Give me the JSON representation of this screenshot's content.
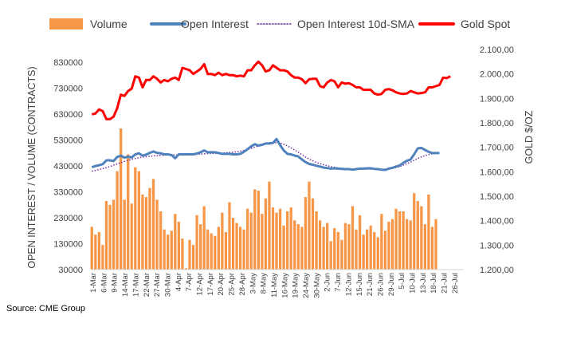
{
  "chart_data": {
    "type": "bar+line",
    "title": "",
    "legend": [
      {
        "name": "Volume",
        "color": "#F79646",
        "style": "bar"
      },
      {
        "name": "Open Interest",
        "color": "#4F81BD",
        "style": "line"
      },
      {
        "name": "Open Interest 10d-SMA",
        "color": "#7030A0",
        "style": "dotted"
      },
      {
        "name": "Gold Spot",
        "color": "#FF0000",
        "style": "line"
      }
    ],
    "legend_position": "top",
    "ylabel_left": "OPEN INTEREST / VOLUME (CONTRACTS)",
    "ylabel_right": "GOLD $/OZ",
    "ylim_left": [
      30000,
      880000
    ],
    "ylim_right": [
      1200,
      2100
    ],
    "yticks_left": [
      "30000",
      "130000",
      "230000",
      "330000",
      "430000",
      "530000",
      "630000",
      "730000",
      "830000"
    ],
    "yticks_right": [
      "1.200,00",
      "1.300,00",
      "1.400,00",
      "1.500,00",
      "1.600,00",
      "1.700,00",
      "1.800,00",
      "1.900,00",
      "2.000,00",
      "2.100,00"
    ],
    "xticks": [
      "1-Mar",
      "6-Mar",
      "9-Mar",
      "14-Mar",
      "17-Mar",
      "22-Mar",
      "27-Mar",
      "30-Mar",
      "4-Apr",
      "7-Apr",
      "12-Apr",
      "17-Apr",
      "20-Apr",
      "25-Apr",
      "28-Apr",
      "3-May",
      "8-May",
      "11-May",
      "16-May",
      "19-May",
      "24-May",
      "30-May",
      "2-Jun",
      "7-Jun",
      "12-Jun",
      "15-Jun",
      "21-Jun",
      "26-Jun",
      "29-Jun",
      "5-Jul",
      "10-Jul",
      "13-Jul",
      "18-Jul",
      "21-Jul",
      "26-Jul"
    ],
    "grid": false,
    "n_points": 101,
    "volume": [
      195000,
      165000,
      175000,
      125000,
      295000,
      280000,
      300000,
      410000,
      575000,
      300000,
      475000,
      285000,
      425000,
      410000,
      320000,
      310000,
      345000,
      380000,
      300000,
      255000,
      185000,
      165000,
      180000,
      245000,
      215000,
      150000,
      35000,
      145000,
      125000,
      240000,
      205000,
      275000,
      185000,
      170000,
      160000,
      195000,
      250000,
      175000,
      290000,
      230000,
      210000,
      195000,
      185000,
      265000,
      250000,
      340000,
      335000,
      245000,
      305000,
      370000,
      270000,
      250000,
      265000,
      200000,
      255000,
      270000,
      220000,
      205000,
      195000,
      310000,
      370000,
      305000,
      255000,
      220000,
      195000,
      210000,
      140000,
      190000,
      175000,
      145000,
      210000,
      205000,
      275000,
      185000,
      240000,
      165000,
      185000,
      200000,
      175000,
      155000,
      245000,
      180000,
      215000,
      225000,
      265000,
      255000,
      255000,
      225000,
      220000,
      325000,
      295000,
      275000,
      205000,
      320000,
      195000,
      225000,
      null,
      null,
      null,
      null,
      null
    ],
    "open_interest": [
      425000,
      430000,
      433000,
      437000,
      452000,
      452000,
      449000,
      465000,
      470000,
      462000,
      466000,
      463000,
      475000,
      479000,
      470000,
      474000,
      481000,
      486000,
      481000,
      479000,
      475000,
      475000,
      472000,
      460000,
      475000,
      475000,
      475000,
      475000,
      475000,
      478000,
      483000,
      490000,
      483000,
      483000,
      483000,
      480000,
      477000,
      477000,
      477000,
      475000,
      475000,
      477000,
      485000,
      495000,
      506000,
      514000,
      509000,
      512000,
      517000,
      517000,
      519000,
      534000,
      510000,
      490000,
      477000,
      475000,
      470000,
      467000,
      455000,
      445000,
      438000,
      435000,
      431000,
      428000,
      424000,
      422000,
      420000,
      421000,
      420000,
      419000,
      418000,
      418000,
      416000,
      418000,
      420000,
      420000,
      421000,
      421000,
      419000,
      418000,
      416000,
      415000,
      420000,
      423000,
      428000,
      432000,
      442000,
      450000,
      455000,
      475000,
      498000,
      500000,
      492000,
      485000,
      480000,
      480000,
      480000,
      null,
      null,
      null,
      null
    ],
    "open_interest_sma": [
      410000,
      413000,
      416000,
      420000,
      424000,
      428000,
      433000,
      438000,
      443000,
      448000,
      452000,
      456000,
      459000,
      462000,
      464000,
      466000,
      468000,
      469000,
      470000,
      471000,
      472000,
      473000,
      473000,
      473000,
      473000,
      473000,
      473000,
      473000,
      474000,
      475000,
      476000,
      477000,
      478000,
      479000,
      479000,
      480000,
      480000,
      481000,
      482000,
      483000,
      485000,
      487000,
      490000,
      494000,
      498000,
      503000,
      508000,
      513000,
      517000,
      520000,
      521000,
      520000,
      518000,
      514000,
      508000,
      500000,
      492000,
      483000,
      474000,
      465000,
      457000,
      450000,
      444000,
      439000,
      435000,
      431000,
      428000,
      425000,
      423000,
      421000,
      420000,
      419000,
      418000,
      418000,
      418000,
      418000,
      418000,
      418000,
      418000,
      417000,
      417000,
      418000,
      419000,
      421000,
      424000,
      428000,
      433000,
      439000,
      445000,
      452000,
      459000,
      465000,
      470000,
      474000,
      477000,
      479000,
      480000,
      null,
      null,
      null,
      null
    ],
    "gold_spot": [
      1835,
      1838,
      1855,
      1848,
      1815,
      1815,
      1825,
      1860,
      1915,
      1910,
      1930,
      1940,
      1990,
      1985,
      1945,
      1975,
      1975,
      1990,
      1980,
      1965,
      1975,
      1970,
      1980,
      1985,
      1975,
      2025,
      2020,
      2015,
      2000,
      2010,
      2020,
      2040,
      2000,
      2000,
      1995,
      2005,
      1995,
      2000,
      1995,
      1995,
      1990,
      1993,
      1990,
      2015,
      2015,
      2035,
      2050,
      2035,
      2010,
      2015,
      2035,
      2025,
      2015,
      2015,
      2010,
      1995,
      1985,
      1985,
      1978,
      1962,
      1978,
      1980,
      1980,
      1950,
      1945,
      1965,
      1975,
      1970,
      1945,
      1965,
      1960,
      1962,
      1955,
      1945,
      1945,
      1935,
      1935,
      1935,
      1920,
      1915,
      1918,
      1935,
      1938,
      1933,
      1925,
      1920,
      1918,
      1920,
      1930,
      1925,
      1920,
      1922,
      1925,
      1945,
      1945,
      1950,
      1955,
      1985,
      1983,
      1990,
      null
    ]
  },
  "source": "Source: CME Group"
}
